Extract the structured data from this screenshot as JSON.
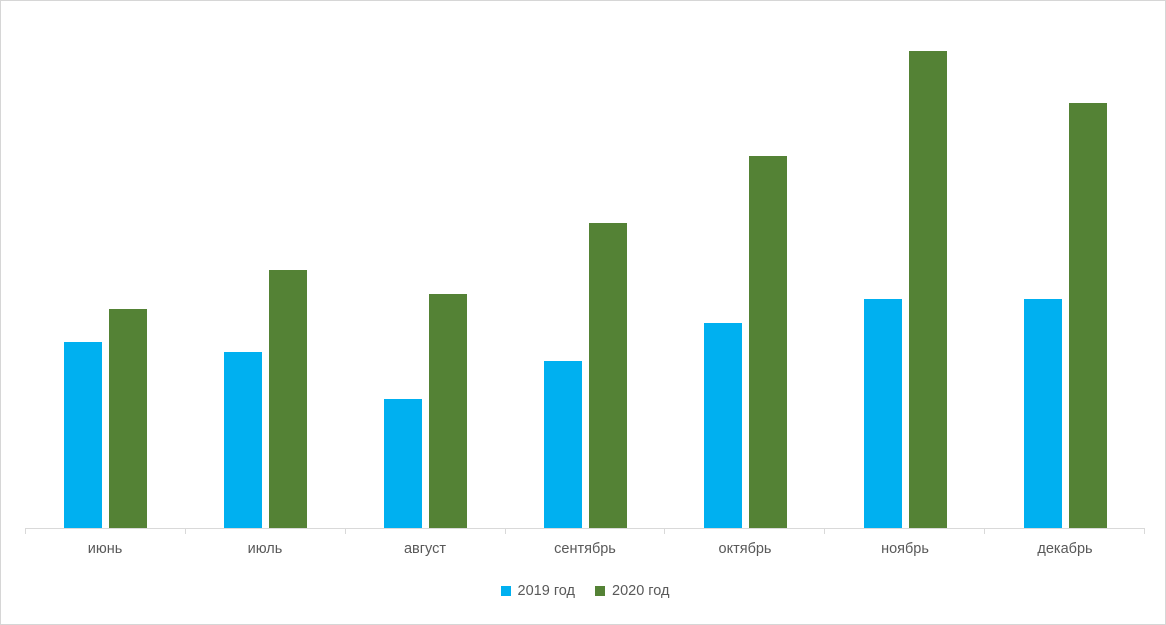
{
  "chart_data": {
    "type": "bar",
    "categories": [
      "июнь",
      "июль",
      "август",
      "сентябрь",
      "октябрь",
      "ноябрь",
      "декабрь"
    ],
    "series": [
      {
        "name": "2019 год",
        "color": "#00b0f0",
        "values": [
          39,
          37,
          27,
          35,
          43,
          48,
          48
        ]
      },
      {
        "name": "2020 год",
        "color": "#548235",
        "values": [
          46,
          54,
          49,
          64,
          78,
          100,
          89
        ]
      }
    ],
    "title": "",
    "xlabel": "",
    "ylabel": "",
    "ylim": [
      0,
      100
    ],
    "value_units": "relative (no numeric axis shown; tallest bar = 100)",
    "grid": false,
    "y_axis_visible": false,
    "legend_position": "bottom",
    "axis_line_color": "#d9d9d9",
    "label_color": "#595959"
  }
}
